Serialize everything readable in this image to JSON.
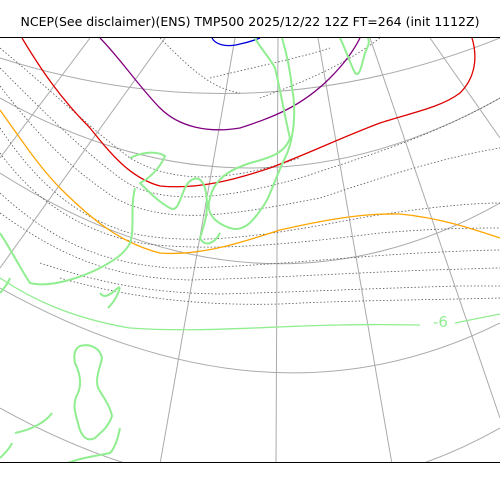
{
  "title": "NCEP(See disclaimer)(ENS) TMP500 2025/12/22 12Z FT=264 (init 1112Z)",
  "colors": {
    "grid": "#aaaaaa",
    "coast": "#90ee90",
    "isotherm_dotted": "#555555",
    "contour_blue": "#0000dd",
    "contour_purple": "#800080",
    "contour_red": "#dd0000",
    "contour_orange": "#ffa500",
    "contour_green": "#90ee90"
  },
  "contour_labels": [
    {
      "text": "-6",
      "color": "#90ee90"
    }
  ]
}
